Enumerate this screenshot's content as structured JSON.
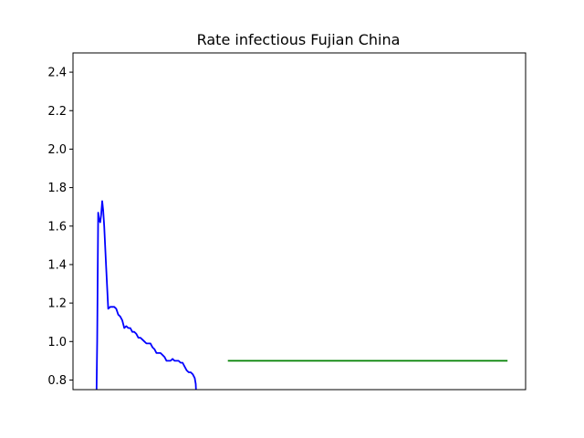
{
  "chart_data": {
    "type": "line",
    "title": "Rate infectious Fujian China",
    "xlabel": "",
    "ylabel": "",
    "ylim": [
      0.75,
      2.5
    ],
    "xlim": [
      0,
      225
    ],
    "grid": false,
    "yticks": [
      {
        "value": 0.8,
        "label": "0.8"
      },
      {
        "value": 1.0,
        "label": "1.0"
      },
      {
        "value": 1.2,
        "label": "1.2"
      },
      {
        "value": 1.4,
        "label": "1.4"
      },
      {
        "value": 1.6,
        "label": "1.6"
      },
      {
        "value": 1.8,
        "label": "1.8"
      },
      {
        "value": 2.0,
        "label": "2.0"
      },
      {
        "value": 2.2,
        "label": "2.2"
      },
      {
        "value": 2.4,
        "label": "2.4"
      }
    ],
    "xticks": [],
    "series": [
      {
        "color": "#0000ff",
        "x": [
          11.7,
          12.0,
          12.5,
          13.0,
          13.5,
          14.0,
          14.5,
          15.0,
          15.5,
          16.5,
          17.5,
          18.5,
          19.5,
          20.5,
          21.5,
          22.5,
          23.5,
          24.5,
          25.5,
          26.5,
          27.5,
          28.5,
          29.5,
          30.5,
          31.5,
          32.5,
          33.5,
          34.5,
          35.5,
          36.5,
          37.5,
          38.5,
          39.5,
          40.5,
          41.5,
          42.5,
          43.5,
          44.5,
          45.5,
          46.5,
          47.5,
          48.5,
          49.5,
          50.5,
          51.5,
          52.5,
          53.5,
          54.5,
          55.5,
          56.5,
          57.5,
          58.5,
          59.5,
          60.5,
          61.0,
          61.2
        ],
        "values": [
          0.74,
          1.0,
          1.67,
          1.63,
          1.62,
          1.66,
          1.73,
          1.68,
          1.6,
          1.38,
          1.17,
          1.18,
          1.18,
          1.18,
          1.17,
          1.14,
          1.13,
          1.11,
          1.07,
          1.08,
          1.07,
          1.07,
          1.05,
          1.05,
          1.04,
          1.02,
          1.02,
          1.01,
          1.0,
          0.99,
          0.99,
          0.99,
          0.97,
          0.96,
          0.94,
          0.94,
          0.94,
          0.93,
          0.92,
          0.9,
          0.9,
          0.9,
          0.91,
          0.9,
          0.9,
          0.9,
          0.89,
          0.89,
          0.87,
          0.85,
          0.84,
          0.84,
          0.83,
          0.81,
          0.78,
          0.74
        ]
      },
      {
        "color": "#008000",
        "x": [
          77,
          216
        ],
        "values": [
          0.9,
          0.9
        ]
      }
    ]
  }
}
